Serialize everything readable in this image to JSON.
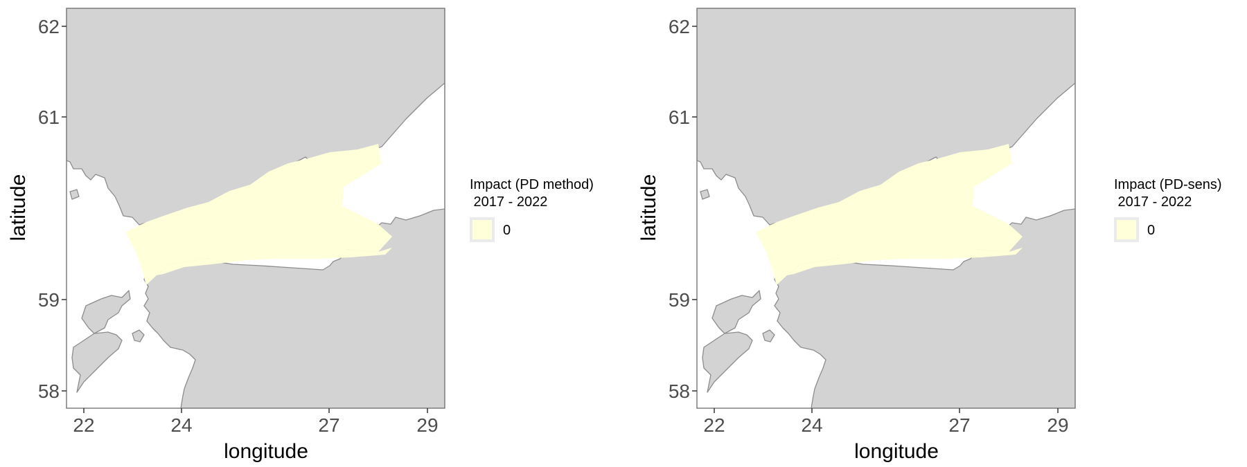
{
  "colors": {
    "land": "#d3d3d3",
    "coast": "#8c8c8c",
    "sea": "#ffffff",
    "impact_fill": "#ffffd9",
    "frame": "#7f7f7f",
    "legend_key_bg": "#ebebeb"
  },
  "chart_data": [
    {
      "type": "map",
      "xlabel": "longitude",
      "ylabel": "latitude",
      "x_ticks": [
        "22",
        "24",
        "27",
        "29"
      ],
      "y_ticks": [
        "62",
        "61",
        "59",
        "58"
      ],
      "legend": {
        "title_line1": "Impact (PD method)",
        "title_line2": " 2017 - 2022",
        "entries": [
          {
            "label": "0",
            "color": "#ffffd9"
          }
        ],
        "placement": "right"
      }
    },
    {
      "type": "map",
      "xlabel": "longitude",
      "ylabel": "latitude",
      "x_ticks": [
        "22",
        "24",
        "27",
        "29"
      ],
      "y_ticks": [
        "62",
        "61",
        "59",
        "58"
      ],
      "legend": {
        "title_line1": "Impact (PD-sens)",
        "title_line2": " 2017 - 2022",
        "entries": [
          {
            "label": "0",
            "color": "#ffffd9"
          }
        ],
        "placement": "right"
      }
    }
  ]
}
